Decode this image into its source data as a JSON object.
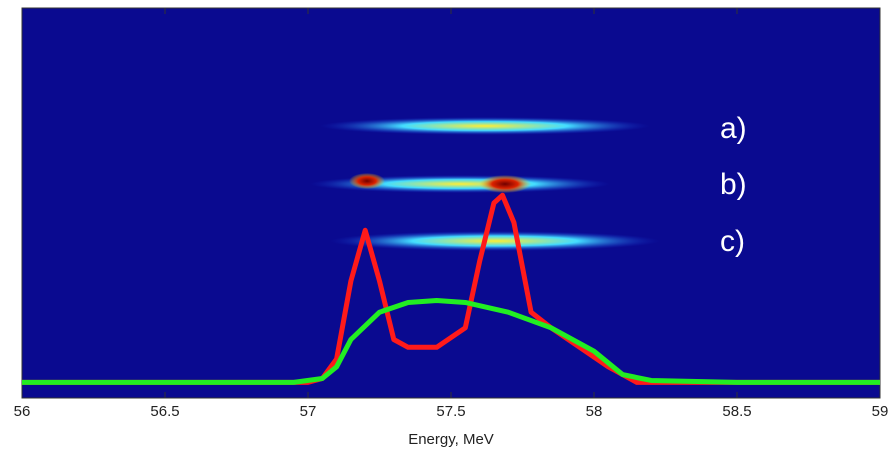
{
  "chart_data": {
    "type": "line",
    "xlabel": "Energy, MeV",
    "xlim": [
      56,
      59
    ],
    "xticks": [
      56,
      56.5,
      57,
      57.5,
      58,
      58.5,
      59
    ],
    "ylim": [
      0,
      1
    ],
    "annotations": [
      "a)",
      "b)",
      "c)"
    ],
    "series": [
      {
        "color": "#ff1a1a",
        "x": [
          56,
          56.5,
          57,
          57.05,
          57.1,
          57.15,
          57.2,
          57.25,
          57.3,
          57.35,
          57.45,
          57.55,
          57.6,
          57.65,
          57.68,
          57.72,
          57.78,
          57.85,
          57.95,
          58.05,
          58.15,
          58.5,
          59
        ],
        "values": [
          0.04,
          0.04,
          0.04,
          0.05,
          0.1,
          0.3,
          0.43,
          0.3,
          0.15,
          0.13,
          0.13,
          0.18,
          0.35,
          0.5,
          0.52,
          0.45,
          0.22,
          0.18,
          0.13,
          0.08,
          0.04,
          0.04,
          0.04
        ]
      },
      {
        "color": "#22ee22",
        "x": [
          56,
          56.5,
          56.95,
          57.05,
          57.1,
          57.15,
          57.25,
          57.35,
          57.45,
          57.55,
          57.7,
          57.85,
          58,
          58.1,
          58.2,
          58.5,
          59
        ],
        "values": [
          0.04,
          0.04,
          0.04,
          0.05,
          0.08,
          0.15,
          0.22,
          0.245,
          0.25,
          0.245,
          0.22,
          0.18,
          0.12,
          0.06,
          0.045,
          0.04,
          0.04
        ]
      }
    ]
  }
}
